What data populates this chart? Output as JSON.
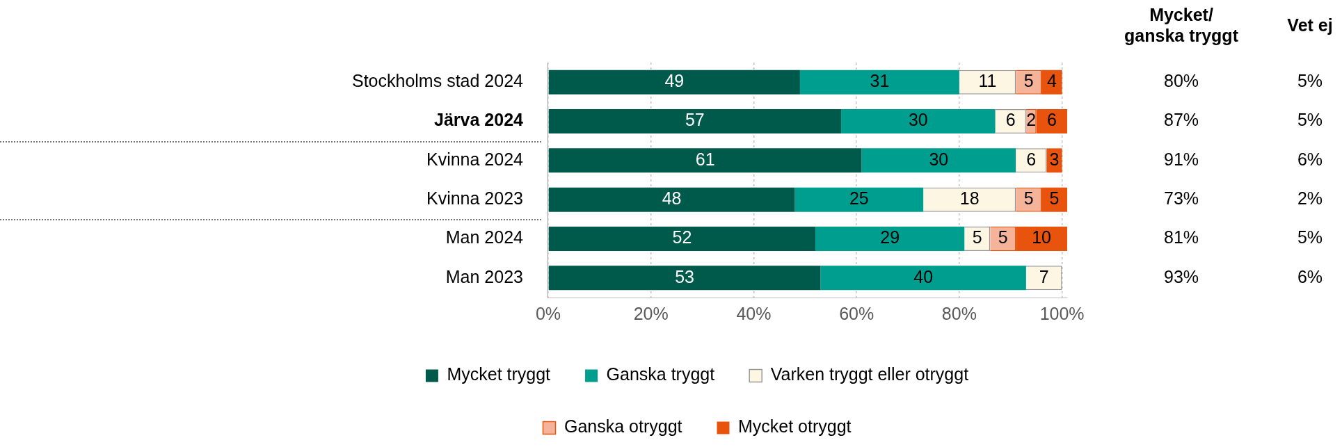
{
  "chart_data": {
    "type": "bar",
    "orientation": "horizontal",
    "stacked": true,
    "categories": [
      "Stockholms stad 2024",
      "Järva 2024",
      "Kvinna 2024",
      "Kvinna 2023",
      "Man 2024",
      "Man 2023"
    ],
    "series": [
      {
        "name": "Mycket tryggt",
        "color": "#005a4b",
        "values": [
          49,
          57,
          61,
          48,
          52,
          53
        ]
      },
      {
        "name": "Ganska tryggt",
        "color": "#009e8e",
        "values": [
          31,
          30,
          30,
          25,
          29,
          40
        ]
      },
      {
        "name": "Varken tryggt eller otryggt",
        "color": "#fdf6e3",
        "values": [
          11,
          6,
          6,
          18,
          5,
          7
        ]
      },
      {
        "name": "Ganska otryggt",
        "color": "#f5b49a",
        "values": [
          5,
          2,
          null,
          5,
          5,
          null
        ]
      },
      {
        "name": "Mycket otryggt",
        "color": "#e8530e",
        "values": [
          4,
          6,
          3,
          5,
          10,
          null
        ]
      }
    ],
    "xlim": [
      0,
      101
    ],
    "xticks": [
      {
        "value": 0,
        "label": "0%"
      },
      {
        "value": 20,
        "label": "20%"
      },
      {
        "value": 40,
        "label": "40%"
      },
      {
        "value": 60,
        "label": "60%"
      },
      {
        "value": 80,
        "label": "80%"
      },
      {
        "value": 100,
        "label": "100%"
      }
    ],
    "grid": "x",
    "legend": "bottom",
    "data_labels": true,
    "annotations": [
      "Mycket/\nganska tryggt",
      "Vet ej",
      "80%",
      "5%",
      "87%",
      "5%",
      "91%",
      "6%",
      "73%",
      "2%",
      "81%",
      "5%",
      "93%",
      "6%"
    ]
  }
}
